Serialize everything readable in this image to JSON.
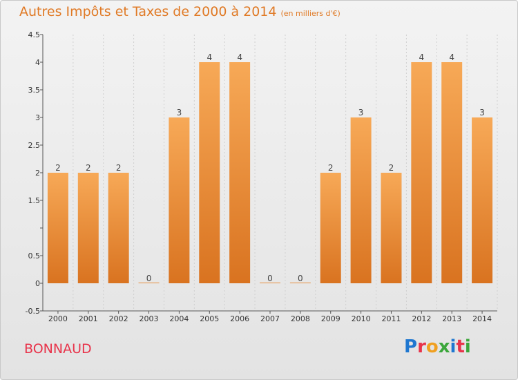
{
  "header": {
    "title": "Autres Impôts et Taxes de 2000 à 2014",
    "subtitle": "(en milliers d'€)"
  },
  "footer": {
    "commune": "BONNAUD",
    "brand": "Proxiti"
  },
  "colors": {
    "title": "#e07a26",
    "bar_light": "#f7a957",
    "bar_dark": "#d97320",
    "commune": "#e8334a",
    "brand_letters": [
      "#1f77d0",
      "#e8334a",
      "#f0a020",
      "#3aa63a",
      "#1f77d0",
      "#e8334a",
      "#3aa63a"
    ]
  },
  "chart_data": {
    "type": "bar",
    "categories": [
      "2000",
      "2001",
      "2002",
      "2003",
      "2004",
      "2005",
      "2006",
      "2007",
      "2008",
      "2009",
      "2010",
      "2011",
      "2012",
      "2013",
      "2014"
    ],
    "values": [
      2,
      2,
      2,
      0,
      3,
      4,
      4,
      0,
      0,
      2,
      3,
      2,
      4,
      4,
      3
    ],
    "data_labels": [
      "2",
      "2",
      "2",
      "0",
      "3",
      "4",
      "4",
      "0",
      "0",
      "2",
      "3",
      "2",
      "4",
      "4",
      "3"
    ],
    "ylim": [
      -0.5,
      4.5
    ],
    "yticks": [
      -0.5,
      0,
      0.5,
      1,
      1.5,
      2,
      2.5,
      3,
      3.5,
      4,
      4.5
    ],
    "ytick_labels": [
      "-0.5",
      "0",
      "0.5",
      "",
      "1.5",
      "2",
      "2.5",
      "3",
      "3.5",
      "4",
      "4.5"
    ],
    "xlabel": "",
    "ylabel": "",
    "grid": "vertical"
  }
}
